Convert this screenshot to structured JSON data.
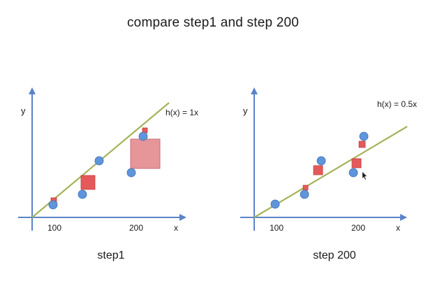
{
  "title": "compare step1 and step 200",
  "left_panel": {
    "caption": "step1",
    "equation": "h(x) = 1x",
    "y_label": "y",
    "x_label": "x",
    "tick_100": "100",
    "tick_200": "200"
  },
  "right_panel": {
    "caption": "step 200",
    "equation": "h(x) = 0.5x",
    "y_label": "y",
    "x_label": "x",
    "tick_100": "100",
    "tick_200": "200"
  },
  "colors": {
    "axis": "#5b83c8",
    "fit_line": "#a6b35a",
    "data_point": "#5e95db",
    "error_square": "#e45a5a"
  }
}
